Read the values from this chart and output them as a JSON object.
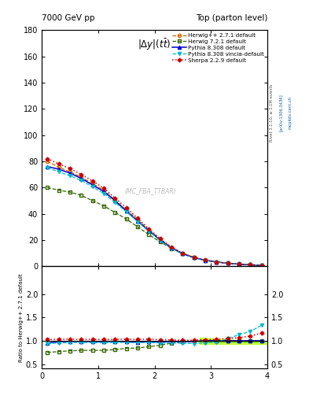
{
  "title_left": "7000 GeV pp",
  "title_right": "Top (parton level)",
  "plot_title": "|\\u0394y|(tt\\u0305bar)",
  "ylabel_ratio": "Ratio to Herwig++ 2.7.1 default",
  "rivet_text": "Rivet 3.1.10, ≥ 3.1M events",
  "arxiv_text": "[arXiv:1306.3436]",
  "mcplots_text": "mcplots.cern.ch",
  "watermark": "(MC_FBA_TTBAR)",
  "x_edges": [
    0.0,
    0.2,
    0.4,
    0.6,
    0.8,
    1.0,
    1.2,
    1.4,
    1.6,
    1.8,
    2.0,
    2.2,
    2.4,
    2.6,
    2.8,
    3.0,
    3.2,
    3.4,
    3.6,
    3.8,
    4.0
  ],
  "herwig271": [
    80.0,
    75.5,
    72.0,
    68.0,
    63.0,
    58.0,
    50.5,
    43.0,
    35.5,
    27.5,
    20.5,
    14.2,
    9.7,
    6.6,
    4.5,
    3.2,
    2.2,
    1.5,
    1.0,
    0.6
  ],
  "herwig721": [
    60.0,
    58.0,
    56.5,
    54.0,
    50.0,
    46.0,
    41.0,
    36.0,
    30.0,
    24.0,
    18.5,
    13.5,
    9.5,
    6.5,
    4.5,
    3.2,
    2.2,
    1.5,
    1.0,
    0.6
  ],
  "pythia8308": [
    76.0,
    74.0,
    71.0,
    67.0,
    62.0,
    57.0,
    50.0,
    42.0,
    34.5,
    27.0,
    20.0,
    14.0,
    9.5,
    6.5,
    4.5,
    3.2,
    2.2,
    1.5,
    1.0,
    0.6
  ],
  "pythia8308v": [
    75.0,
    72.0,
    69.0,
    65.5,
    60.5,
    55.5,
    48.5,
    41.5,
    34.0,
    26.5,
    19.5,
    13.5,
    9.2,
    6.2,
    4.3,
    3.1,
    2.3,
    1.7,
    1.2,
    0.8
  ],
  "sherpa229": [
    82.0,
    78.0,
    74.5,
    70.0,
    65.0,
    59.5,
    52.0,
    44.5,
    36.5,
    28.5,
    21.0,
    14.5,
    9.8,
    6.7,
    4.6,
    3.3,
    2.3,
    1.6,
    1.1,
    0.7
  ],
  "ratio_herwig721": [
    0.75,
    0.768,
    0.784,
    0.794,
    0.794,
    0.793,
    0.812,
    0.837,
    0.845,
    0.873,
    0.902,
    0.951,
    0.979,
    0.985,
    0.999,
    1.0,
    1.0,
    1.0,
    1.0,
    1.0
  ],
  "ratio_pythia8308": [
    0.95,
    0.979,
    0.986,
    0.985,
    0.984,
    0.983,
    0.99,
    0.977,
    0.972,
    0.982,
    0.976,
    0.985,
    0.979,
    0.985,
    1.0,
    1.0,
    1.0,
    1.0,
    1.0,
    1.0
  ],
  "ratio_pythia8308v": [
    0.938,
    0.953,
    0.958,
    0.963,
    0.96,
    0.957,
    0.96,
    0.965,
    0.958,
    0.964,
    0.951,
    0.951,
    0.948,
    0.939,
    0.956,
    0.969,
    1.045,
    1.133,
    1.2,
    1.333
  ],
  "ratio_sherpa229": [
    1.025,
    1.033,
    1.035,
    1.029,
    1.032,
    1.026,
    1.03,
    1.035,
    1.028,
    1.036,
    1.024,
    1.021,
    1.01,
    1.015,
    1.022,
    1.031,
    1.045,
    1.067,
    1.1,
    1.167
  ],
  "colors": {
    "herwig271": "#cc6600",
    "herwig721": "#336600",
    "pythia8308": "#0000cc",
    "pythia8308v": "#00bbcc",
    "sherpa229": "#cc0000"
  },
  "band_color": "#bbff00",
  "ylim_main": [
    0,
    180
  ],
  "ylim_ratio": [
    0.4,
    2.6
  ],
  "yticks_main": [
    0,
    20,
    40,
    60,
    80,
    100,
    120,
    140,
    160,
    180
  ],
  "yticks_ratio": [
    0.5,
    1.0,
    1.5,
    2.0
  ],
  "xlim": [
    0,
    4
  ],
  "legend_entries": [
    "Herwig++ 2.7.1 default",
    "Herwig 7.2.1 default",
    "Pythia 8.308 default",
    "Pythia 8.308 vincia-default",
    "Sherpa 2.2.9 default"
  ]
}
